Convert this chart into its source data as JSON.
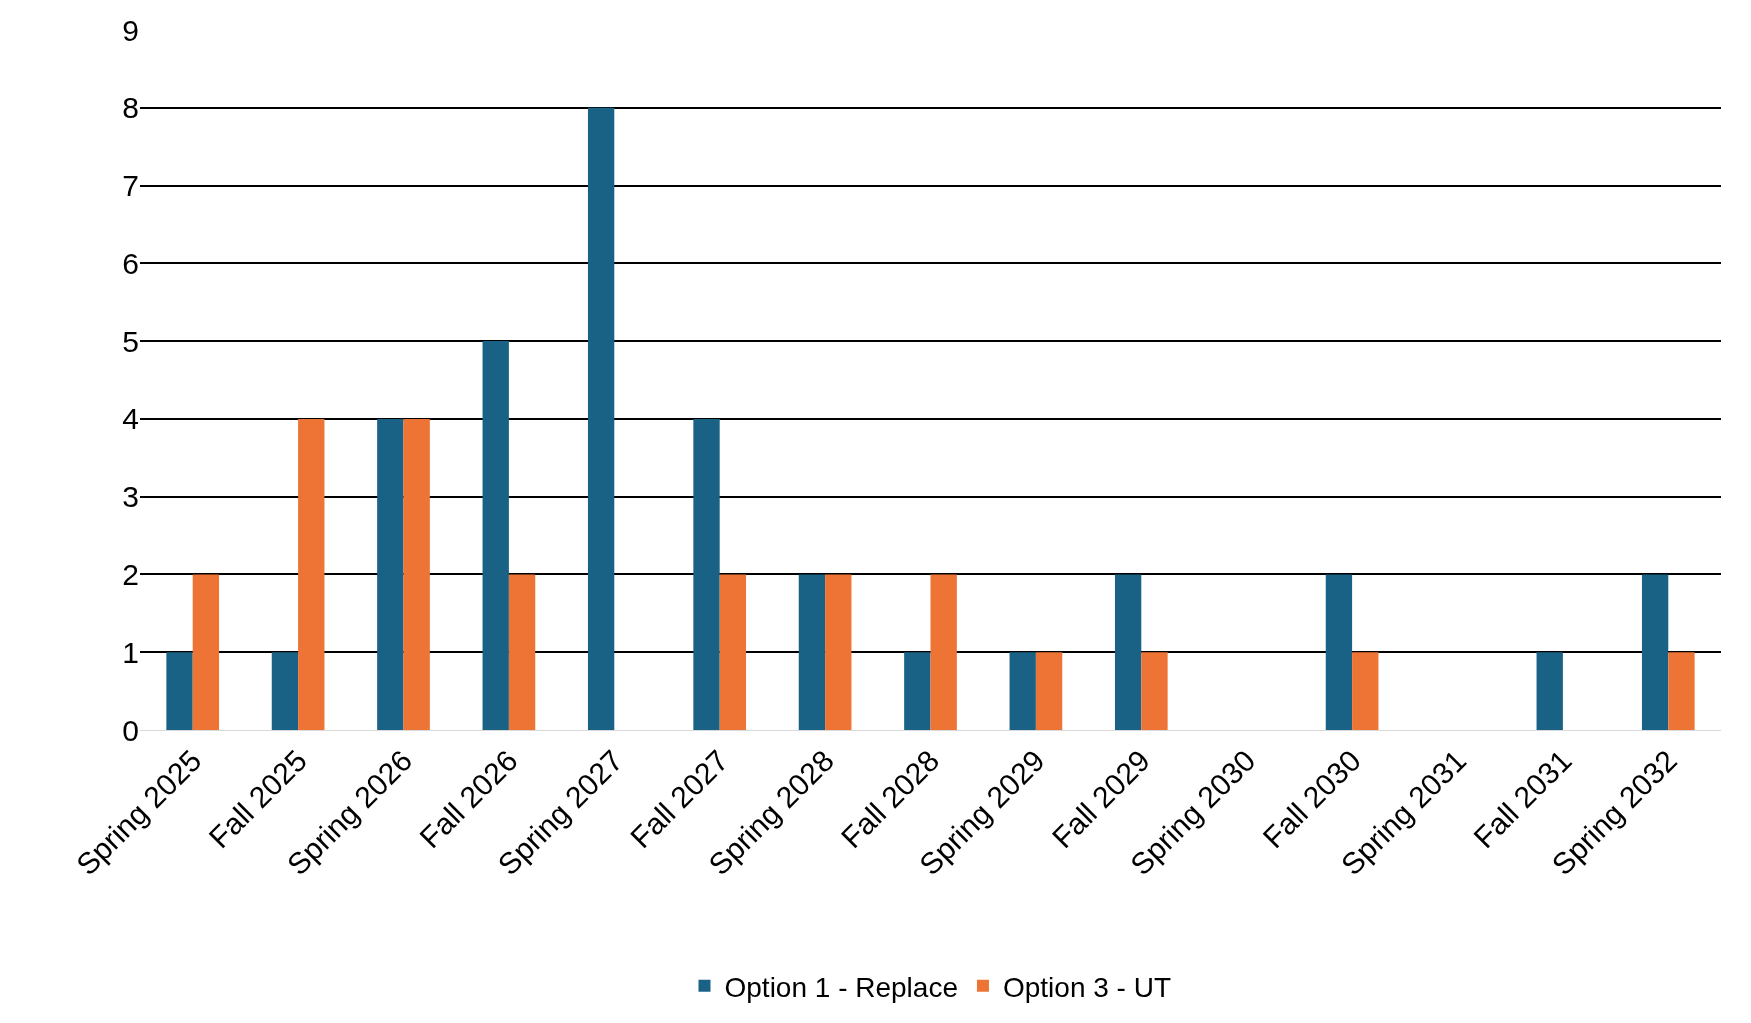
{
  "chart_data": {
    "type": "bar",
    "categories": [
      "Spring 2025",
      "Fall 2025",
      "Spring 2026",
      "Fall 2026",
      "Spring 2027",
      "Fall 2027",
      "Spring 2028",
      "Fall 2028",
      "Spring 2029",
      "Fall 2029",
      "Spring 2030",
      "Fall 2030",
      "Spring 2031",
      "Fall 2031",
      "Spring 2032"
    ],
    "series": [
      {
        "name": "Option 1 - Replace",
        "color": "#1a6285",
        "values": [
          1,
          1,
          4,
          5,
          8,
          4,
          2,
          1,
          1,
          2,
          0,
          2,
          0,
          1,
          2
        ]
      },
      {
        "name": "Option 3 - UT",
        "color": "#ed7434",
        "values": [
          2,
          4,
          4,
          2,
          0,
          2,
          2,
          2,
          1,
          1,
          0,
          1,
          0,
          0,
          1
        ]
      }
    ],
    "ylim": [
      0,
      9
    ],
    "yticks": [
      0,
      1,
      2,
      3,
      4,
      5,
      6,
      7,
      8,
      9
    ],
    "grid": "y",
    "legend": "bottom"
  }
}
